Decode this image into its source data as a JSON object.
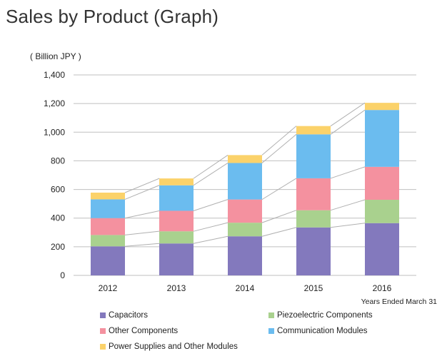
{
  "title": "Sales by Product (Graph)",
  "unit_label": "( Billion JPY )",
  "footnote": "Years Ended March 31",
  "chart_data": {
    "type": "bar",
    "stacked": true,
    "categories": [
      "2012",
      "2013",
      "2014",
      "2015",
      "2016"
    ],
    "series": [
      {
        "name": "Capacitors",
        "color": "#8379bd",
        "values": [
          203,
          223,
          273,
          335,
          365
        ]
      },
      {
        "name": "Piezoelectric Components",
        "color": "#a9d18e",
        "values": [
          79,
          85,
          95,
          120,
          163
        ]
      },
      {
        "name": "Other Components",
        "color": "#f4919f",
        "values": [
          118,
          143,
          162,
          223,
          230
        ]
      },
      {
        "name": "Communication Modules",
        "color": "#6bbcef",
        "values": [
          131,
          178,
          255,
          307,
          397
        ]
      },
      {
        "name": "Power Supplies and Other Modules",
        "color": "#fbd26a",
        "values": [
          47,
          48,
          55,
          58,
          50
        ]
      }
    ],
    "ylim": [
      0,
      1400
    ],
    "yticks": [
      "0",
      "200",
      "400",
      "600",
      "800",
      "1,000",
      "1,200",
      "1,400"
    ],
    "grid": true,
    "legend_position": "bottom"
  }
}
